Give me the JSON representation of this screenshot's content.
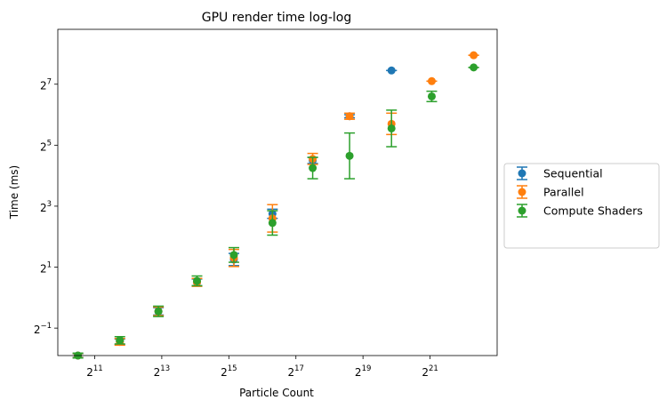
{
  "chart_data": {
    "type": "scatter",
    "title": "GPU render time log-log",
    "xlabel": "Particle Count",
    "ylabel": "Time (ms)",
    "xscale": "log2",
    "yscale": "log2",
    "x_ticks": [
      {
        "base": "2",
        "exp": "11",
        "value": 11
      },
      {
        "base": "2",
        "exp": "13",
        "value": 13
      },
      {
        "base": "2",
        "exp": "15",
        "value": 15
      },
      {
        "base": "2",
        "exp": "17",
        "value": 17
      },
      {
        "base": "2",
        "exp": "19",
        "value": 19
      },
      {
        "base": "2",
        "exp": "21",
        "value": 21
      }
    ],
    "y_ticks": [
      {
        "base": "2",
        "exp": "−1",
        "value": -1
      },
      {
        "base": "2",
        "exp": "1",
        "value": 1
      },
      {
        "base": "2",
        "exp": "3",
        "value": 3
      },
      {
        "base": "2",
        "exp": "5",
        "value": 5
      },
      {
        "base": "2",
        "exp": "7",
        "value": 7
      }
    ],
    "xlim_log2": [
      9.9,
      23.0
    ],
    "ylim_log2": [
      -1.9,
      8.8
    ],
    "grid": false,
    "legend_position": "right-outside",
    "series": [
      {
        "name": "Sequential",
        "color": "#1f77b4",
        "x_log2": [
          10.5,
          11.75,
          12.9,
          14.05,
          15.15,
          16.3,
          17.5,
          18.6,
          19.85
        ],
        "y_log2": [
          -1.9,
          -1.45,
          -0.45,
          0.5,
          1.25,
          2.75,
          4.5,
          5.95,
          7.45
        ],
        "err_low_log2": [
          0.06,
          0.09,
          0.12,
          0.11,
          0.2,
          0.15,
          0.1,
          0.05,
          0.0
        ],
        "err_high_log2": [
          0.06,
          0.09,
          0.12,
          0.11,
          0.2,
          0.15,
          0.1,
          0.05,
          0.0
        ]
      },
      {
        "name": "Parallel",
        "color": "#ff7f0e",
        "x_log2": [
          10.5,
          11.75,
          12.9,
          14.05,
          15.15,
          16.3,
          17.5,
          18.6,
          19.85,
          21.05,
          22.3
        ],
        "y_log2": [
          -1.9,
          -1.45,
          -0.45,
          0.5,
          1.3,
          2.6,
          4.55,
          5.95,
          5.7,
          7.1,
          7.95
        ],
        "err_low_log2": [
          0.07,
          0.11,
          0.14,
          0.13,
          0.28,
          0.45,
          0.18,
          0.1,
          0.35,
          0.0,
          0.0
        ],
        "err_high_log2": [
          0.07,
          0.11,
          0.14,
          0.13,
          0.28,
          0.45,
          0.18,
          0.1,
          0.35,
          0.0,
          0.0
        ]
      },
      {
        "name": "Compute Shaders",
        "color": "#2ca02c",
        "x_log2": [
          10.5,
          11.75,
          12.9,
          14.05,
          15.15,
          16.3,
          17.5,
          18.6,
          19.85,
          21.05,
          22.3
        ],
        "y_log2": [
          -1.9,
          -1.4,
          -0.45,
          0.55,
          1.4,
          2.45,
          4.25,
          4.65,
          5.55,
          6.6,
          7.55
        ],
        "err_low_log2": [
          0.08,
          0.12,
          0.17,
          0.16,
          0.24,
          0.4,
          0.35,
          0.75,
          0.6,
          0.17,
          0.0
        ],
        "err_high_log2": [
          0.08,
          0.12,
          0.17,
          0.16,
          0.24,
          0.4,
          0.35,
          0.75,
          0.6,
          0.17,
          0.0
        ]
      }
    ]
  }
}
